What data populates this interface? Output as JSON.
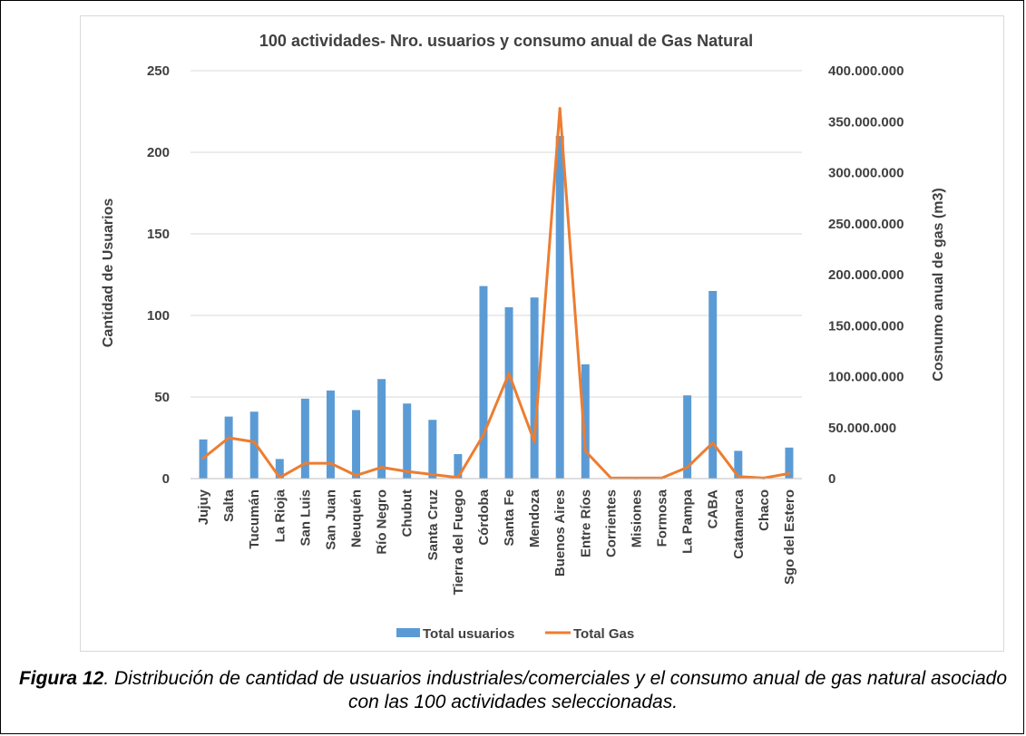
{
  "chart_data": {
    "type": "bar",
    "title": "100 actividades- Nro. usuarios y consumo anual de Gas Natural",
    "ylabel": "Cantidad de Usuarios",
    "y2label": "Cosnumo anual de gas (m3)",
    "ylim": [
      0,
      250
    ],
    "y2lim": [
      0,
      400000000
    ],
    "yticks": [
      "0",
      "50",
      "100",
      "150",
      "200",
      "250"
    ],
    "y2ticks": [
      "0",
      "50.000.000",
      "100.000.000",
      "150.000.000",
      "200.000.000",
      "250.000.000",
      "300.000.000",
      "350.000.000",
      "400.000.000"
    ],
    "grid": true,
    "legend": "bottom",
    "categories": [
      "Jujuy",
      "Salta",
      "Tucumán",
      "La Rioja",
      "San Luis",
      "San Juan",
      "Neuquén",
      "Río Negro",
      "Chubut",
      "Santa Cruz",
      "Tierra del Fuego",
      "Córdoba",
      "Santa Fe",
      "Mendoza",
      "Buenos Aires",
      "Entre Ríos",
      "Corrientes",
      "Misiones",
      "Formosa",
      "La Pampa",
      "CABA",
      "Catamarca",
      "Chaco",
      "Sgo del Estero"
    ],
    "series": [
      {
        "name": "Total usuarios",
        "kind": "bar",
        "axis": "left",
        "color": "#5b9bd5",
        "values": [
          24,
          38,
          41,
          12,
          49,
          54,
          42,
          61,
          46,
          36,
          15,
          118,
          105,
          111,
          210,
          70,
          0,
          0,
          0,
          51,
          115,
          17,
          0,
          19
        ]
      },
      {
        "name": "Total Gas",
        "kind": "line",
        "axis": "right",
        "color": "#ed7d31",
        "values": [
          20000000,
          40000000,
          36000000,
          1000000,
          15000000,
          15000000,
          3000000,
          11000000,
          7000000,
          4000000,
          1000000,
          43000000,
          103000000,
          36000000,
          363000000,
          27000000,
          500000,
          500000,
          500000,
          11000000,
          35000000,
          2000000,
          500000,
          5000000
        ]
      }
    ]
  },
  "caption": {
    "label": "Figura 12",
    "text": ". Distribución de cantidad de usuarios industriales/comerciales y el consumo anual de gas natural asociado con las 100 actividades seleccionadas."
  }
}
